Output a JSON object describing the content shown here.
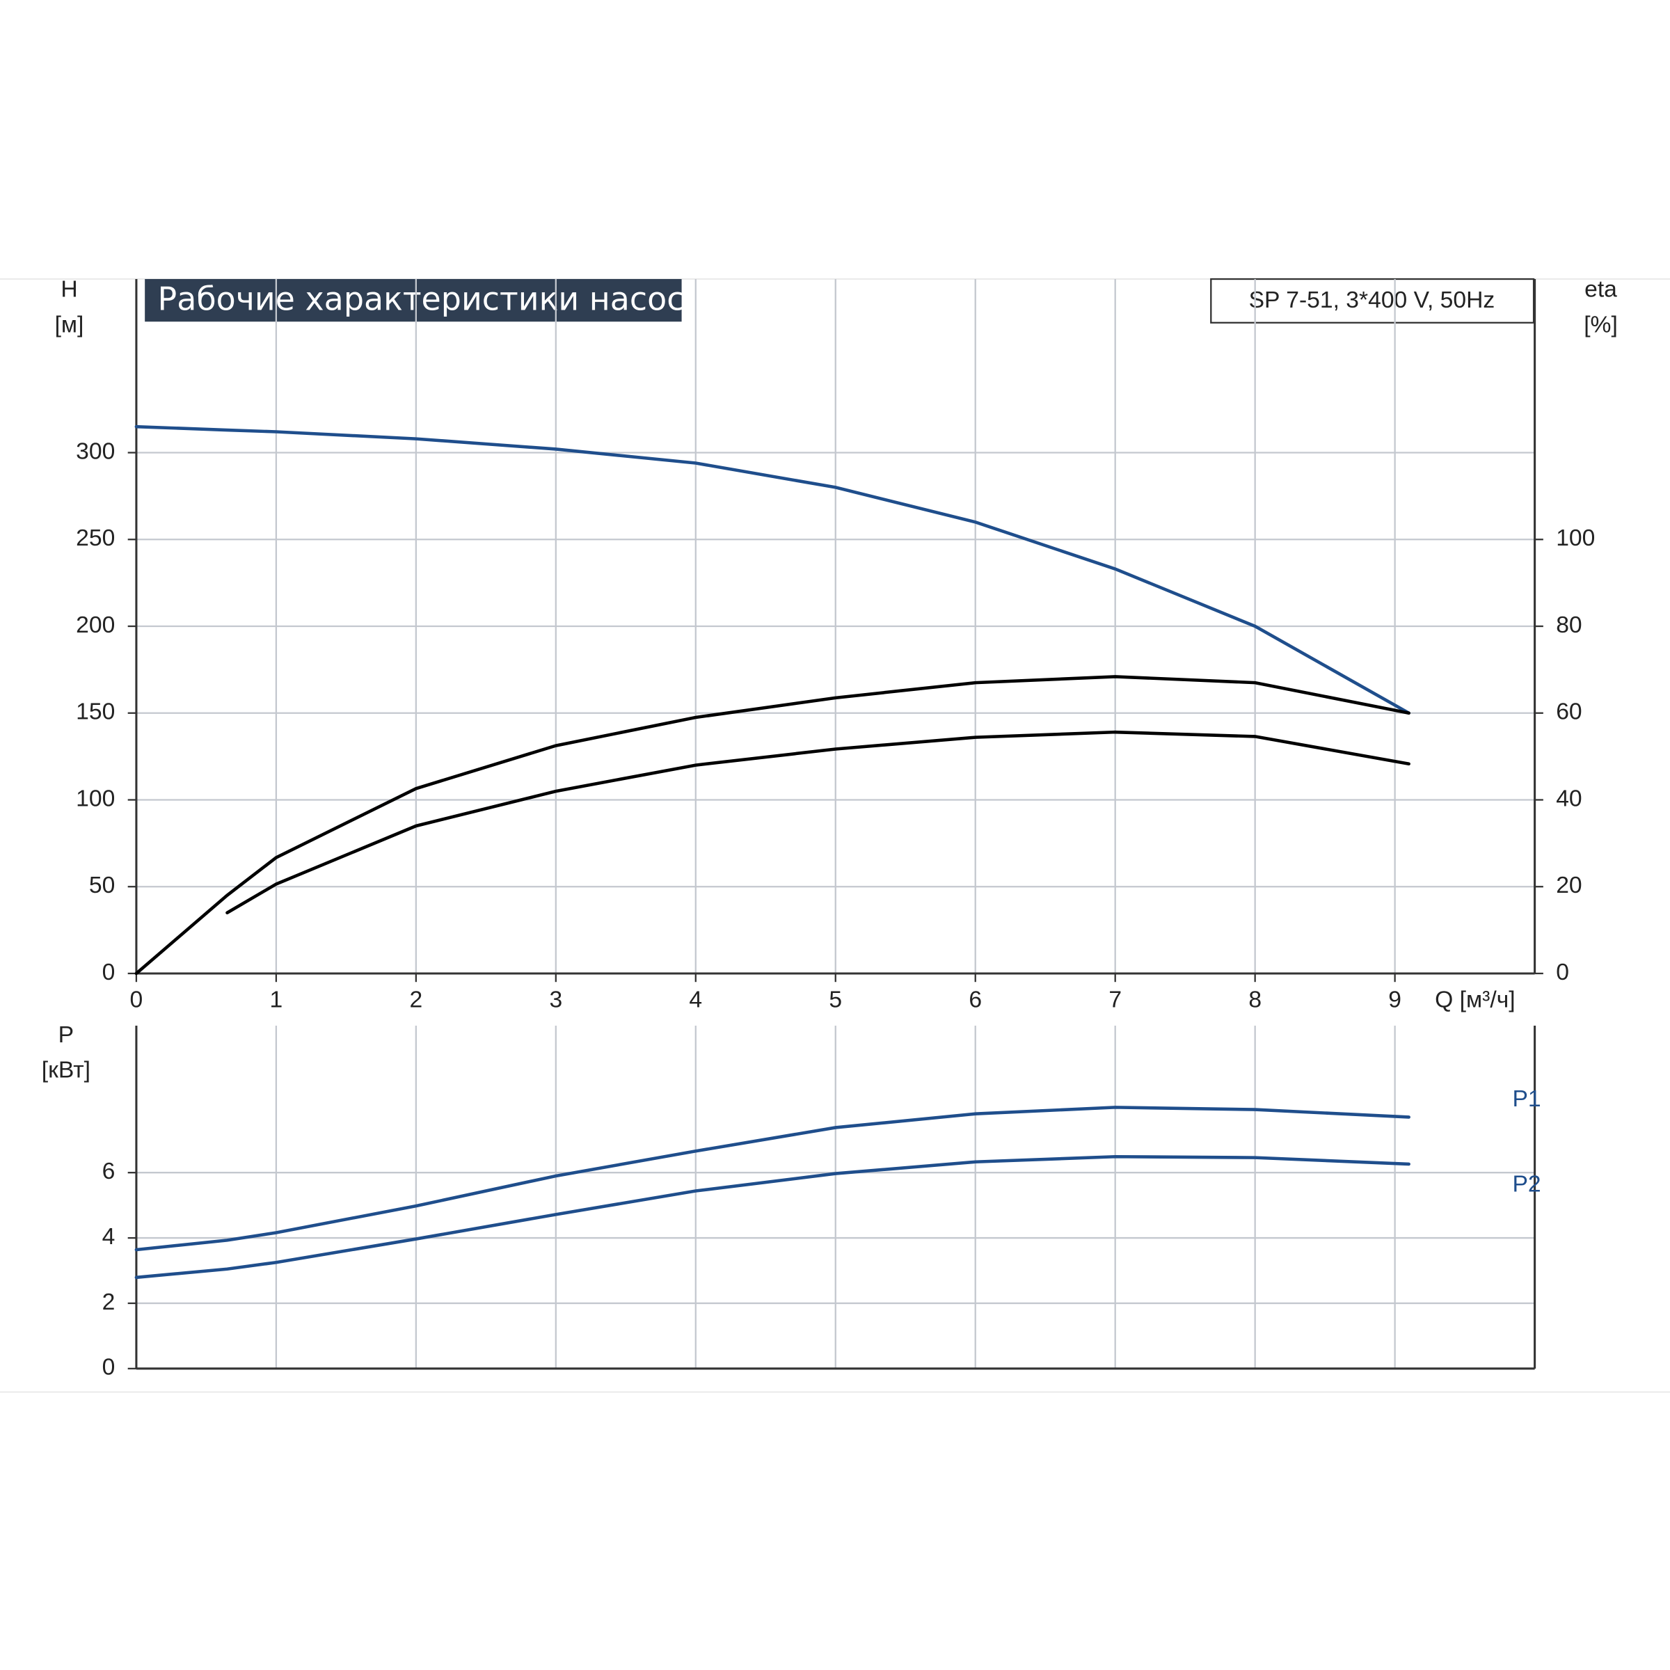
{
  "chart_data": [
    {
      "type": "line",
      "title": "Рабочие характеристики насоса",
      "subtitle": "SP 7-51, 3*400 V, 50Hz",
      "ylabel": [
        "H",
        "[м]"
      ],
      "y2label": [
        "eta",
        "[%]"
      ],
      "xlabel": "Q [м³/ч]",
      "x": [
        0,
        0.65,
        1,
        2,
        3,
        4,
        5,
        6,
        7,
        8,
        9.1
      ],
      "xlim": [
        0,
        10
      ],
      "xticks": [
        0,
        1,
        2,
        3,
        4,
        5,
        6,
        7,
        8,
        9
      ],
      "ylim": [
        0,
        400
      ],
      "yticks": [
        0,
        50,
        100,
        150,
        200,
        250,
        300
      ],
      "y2lim": [
        0,
        160
      ],
      "y2ticks": [
        0,
        20,
        40,
        60,
        80,
        100
      ],
      "grid": true,
      "series": [
        {
          "color": "#1f4e8c",
          "values": [
            315,
            313,
            312,
            308,
            302,
            294,
            280,
            260,
            233,
            200,
            150
          ]
        },
        {
          "color": "#000000",
          "axis": "y2",
          "values": [
            0,
            18,
            26.7,
            42.6,
            52.5,
            59,
            63.5,
            67,
            68.4,
            67,
            60
          ]
        },
        {
          "color": "#000000",
          "axis": "y2",
          "values": [
            null,
            14,
            20.6,
            34,
            42,
            48,
            51.7,
            54.4,
            55.6,
            54.6,
            48.3
          ]
        }
      ]
    },
    {
      "type": "line",
      "ylabel": [
        "P",
        "[кВт]"
      ],
      "x": [
        0,
        0.65,
        1,
        2,
        3,
        4,
        5,
        6,
        7,
        8,
        9.1
      ],
      "xlim": [
        0,
        10
      ],
      "ylim": [
        0,
        10.5
      ],
      "yticks": [
        0,
        2,
        4,
        6
      ],
      "grid": true,
      "series": [
        {
          "name": "P1",
          "color": "#1f4e8c",
          "values": [
            3.64,
            3.93,
            4.16,
            4.98,
            5.9,
            6.66,
            7.38,
            7.8,
            8.0,
            7.93,
            7.7
          ]
        },
        {
          "name": "P2",
          "color": "#1f4e8c",
          "values": [
            2.79,
            3.05,
            3.25,
            3.97,
            4.72,
            5.44,
            5.97,
            6.33,
            6.49,
            6.46,
            6.26
          ]
        }
      ]
    }
  ]
}
